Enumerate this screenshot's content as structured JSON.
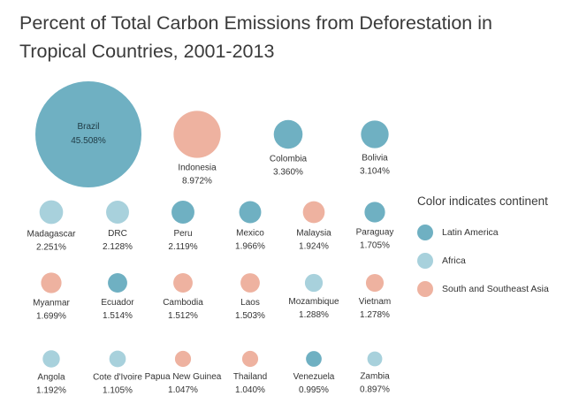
{
  "chart_data": {
    "type": "bubble",
    "title": "Percent of Total Carbon Emissions from Deforestation in Tropical Countries, 2001-2013",
    "value_unit": "%",
    "continent_colors": {
      "Latin America": "#6fb0c2",
      "Africa": "#a8d1dc",
      "South and Southeast Asia": "#eeb2a0"
    },
    "legend": {
      "title": "Color indicates continent",
      "placement": "right",
      "entries": [
        "Latin America",
        "Africa",
        "South and Southeast Asia"
      ]
    },
    "points": [
      {
        "country": "Brazil",
        "value": "45.508%",
        "continent": "Latin America"
      },
      {
        "country": "Indonesia",
        "value": "8.972%",
        "continent": "South and Southeast Asia"
      },
      {
        "country": "Colombia",
        "value": "3.360%",
        "continent": "Latin America"
      },
      {
        "country": "Bolivia",
        "value": "3.104%",
        "continent": "Latin America"
      },
      {
        "country": "Madagascar",
        "value": "2.251%",
        "continent": "Africa"
      },
      {
        "country": "DRC",
        "value": "2.128%",
        "continent": "Africa"
      },
      {
        "country": "Peru",
        "value": "2.119%",
        "continent": "Latin America"
      },
      {
        "country": "Mexico",
        "value": "1.966%",
        "continent": "Latin America"
      },
      {
        "country": "Malaysia",
        "value": "1.924%",
        "continent": "South and Southeast Asia"
      },
      {
        "country": "Paraguay",
        "value": "1.705%",
        "continent": "Latin America"
      },
      {
        "country": "Myanmar",
        "value": "1.699%",
        "continent": "South and Southeast Asia"
      },
      {
        "country": "Ecuador",
        "value": "1.514%",
        "continent": "Latin America"
      },
      {
        "country": "Cambodia",
        "value": "1.512%",
        "continent": "South and Southeast Asia"
      },
      {
        "country": "Laos",
        "value": "1.503%",
        "continent": "South and Southeast Asia"
      },
      {
        "country": "Mozambique",
        "value": "1.288%",
        "continent": "Africa"
      },
      {
        "country": "Vietnam",
        "value": "1.278%",
        "continent": "South and Southeast Asia"
      },
      {
        "country": "Angola",
        "value": "1.192%",
        "continent": "Africa"
      },
      {
        "country": "Cote d'Ivoire",
        "value": "1.105%",
        "continent": "Africa"
      },
      {
        "country": "Papua New Guinea",
        "value": "1.047%",
        "continent": "South and Southeast Asia"
      },
      {
        "country": "Thailand",
        "value": "1.040%",
        "continent": "South and Southeast Asia"
      },
      {
        "country": "Venezuela",
        "value": "0.995%",
        "continent": "Latin America"
      },
      {
        "country": "Zambia",
        "value": "0.897%",
        "continent": "Africa"
      }
    ]
  }
}
